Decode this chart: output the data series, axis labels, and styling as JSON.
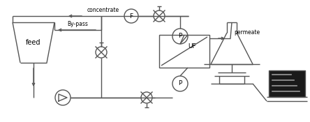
{
  "bg_color": "#ffffff",
  "line_color": "#555555",
  "lw": 1.0,
  "fig_w": 4.44,
  "fig_h": 1.75,
  "dpi": 100,
  "labels": {
    "feed": "feed",
    "concentrate": "concentrate",
    "bypass": "By-pass",
    "permeate": "permeate",
    "F": "F",
    "P_top": "P",
    "P_bot": "P",
    "UF": "UF"
  },
  "font_size": 5.5
}
